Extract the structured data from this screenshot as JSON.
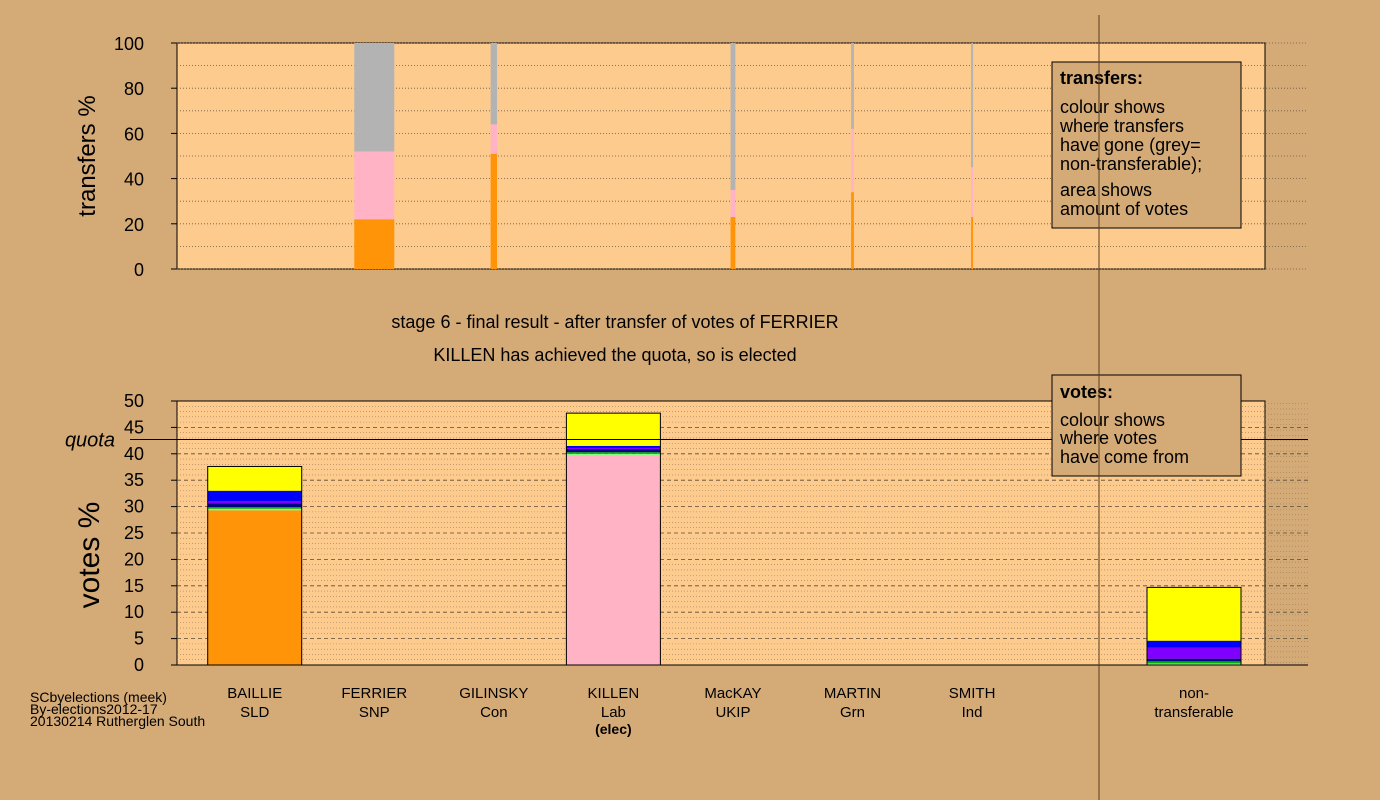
{
  "colors": {
    "background": "#d4aa77",
    "plot_bg": "#fdcb8e",
    "SLD": "#ff9409",
    "Lab": "#ffb3c5",
    "nontransferable": "#b3b3b3",
    "yellow": "#ffff00",
    "blue": "#0000ff",
    "purple": "#8000ff",
    "darkblue": "#000080",
    "green": "#00b000",
    "lightgreen": "#80ff80"
  },
  "chart_data": [
    {
      "type": "bar",
      "ylabel": "transfers %",
      "ylim": [
        0,
        100
      ],
      "yticks": [
        0,
        20,
        40,
        60,
        80,
        100
      ],
      "grid": true,
      "note": "bar width shows amount of votes transferred",
      "categories": [
        "BAILLIE SLD",
        "FERRIER SNP",
        "GILINSKY Con",
        "KILLEN Lab",
        "MacKAY UKIP",
        "MARTIN Grn",
        "SMITH Ind"
      ],
      "columns": [
        {
          "category": "FERRIER SNP",
          "width": 1.0,
          "segments": [
            {
              "to": "SLD",
              "value": 22
            },
            {
              "to": "Lab",
              "value": 30
            },
            {
              "to": "non-transferable",
              "value": 48
            }
          ]
        },
        {
          "category": "GILINSKY Con",
          "width": 0.16,
          "segments": [
            {
              "to": "SLD",
              "value": 51
            },
            {
              "to": "Lab",
              "value": 13
            },
            {
              "to": "non-transferable",
              "value": 36
            }
          ]
        },
        {
          "category": "MacKAY UKIP",
          "width": 0.12,
          "segments": [
            {
              "to": "SLD",
              "value": 23
            },
            {
              "to": "Lab",
              "value": 12
            },
            {
              "to": "non-transferable",
              "value": 65
            }
          ]
        },
        {
          "category": "MARTIN Grn",
          "width": 0.07,
          "segments": [
            {
              "to": "SLD",
              "value": 34
            },
            {
              "to": "Lab",
              "value": 28
            },
            {
              "to": "non-transferable",
              "value": 38
            }
          ]
        },
        {
          "category": "SMITH Ind",
          "width": 0.05,
          "segments": [
            {
              "to": "SLD",
              "value": 23
            },
            {
              "to": "Lab",
              "value": 22
            },
            {
              "to": "non-transferable",
              "value": 55
            }
          ]
        }
      ],
      "legend": {
        "title": "transfers:",
        "lines_a": [
          "colour shows",
          "where transfers",
          "have gone (grey=",
          "non-transferable);"
        ],
        "lines_b": [
          "area shows",
          "amount of votes"
        ]
      }
    },
    {
      "type": "bar",
      "ylabel": "votes %",
      "ylim": [
        0,
        50
      ],
      "yticks": [
        0,
        5,
        10,
        15,
        20,
        25,
        30,
        35,
        40,
        45,
        50
      ],
      "quota": 42.7,
      "quota_label": "quota",
      "grid": true,
      "candidates": [
        {
          "name": "BAILLIE",
          "party": "SLD",
          "tag": "",
          "segments": [
            {
              "color": "SLD",
              "value": 29.3
            },
            {
              "color": "lightgreen",
              "value": 0.3
            },
            {
              "color": "green",
              "value": 0.3
            },
            {
              "color": "darkblue",
              "value": 0.7
            },
            {
              "color": "purple",
              "value": 0.4
            },
            {
              "color": "blue",
              "value": 2.0
            },
            {
              "color": "yellow",
              "value": 4.6
            }
          ]
        },
        {
          "name": "FERRIER",
          "party": "SNP",
          "tag": "",
          "segments": []
        },
        {
          "name": "GILINSKY",
          "party": "Con",
          "tag": "",
          "segments": []
        },
        {
          "name": "KILLEN",
          "party": "Lab",
          "tag": "(elec)",
          "segments": [
            {
              "color": "Lab",
              "value": 39.7
            },
            {
              "color": "lightgreen",
              "value": 0.3
            },
            {
              "color": "green",
              "value": 0.3
            },
            {
              "color": "darkblue",
              "value": 0.6
            },
            {
              "color": "purple",
              "value": 0.2
            },
            {
              "color": "blue",
              "value": 0.4
            },
            {
              "color": "yellow",
              "value": 6.2
            }
          ]
        },
        {
          "name": "MacKAY",
          "party": "UKIP",
          "tag": "",
          "segments": []
        },
        {
          "name": "MARTIN",
          "party": "Grn",
          "tag": "",
          "segments": []
        },
        {
          "name": "SMITH",
          "party": "Ind",
          "tag": "",
          "segments": []
        }
      ],
      "nontransferable": {
        "label_line1": "non-",
        "label_line2": "transferable",
        "segments": [
          {
            "color": "lightgreen",
            "value": 0.3
          },
          {
            "color": "green",
            "value": 0.4
          },
          {
            "color": "darkblue",
            "value": 0.5
          },
          {
            "color": "purple",
            "value": 2.1
          },
          {
            "color": "blue",
            "value": 1.3
          },
          {
            "color": "yellow",
            "value": 10.1
          }
        ]
      },
      "legend": {
        "title": "votes:",
        "lines": [
          "colour shows",
          "where votes",
          "have come from"
        ]
      }
    }
  ],
  "stage_title": "stage 6 - final result - after transfer of votes of FERRIER",
  "stage_subtitle": "KILLEN has achieved the quota, so is elected",
  "footer": [
    "SCbyelections (meek)",
    "By-elections2012-17",
    "20130214 Rutherglen South"
  ]
}
